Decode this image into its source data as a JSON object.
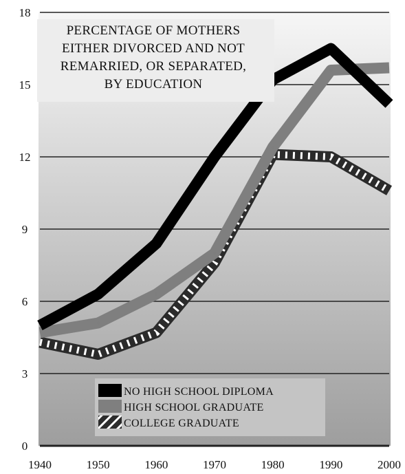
{
  "chart_data": {
    "type": "line",
    "title_lines": [
      "PERCENTAGE OF MOTHERS",
      "EITHER DIVORCED AND NOT",
      "REMARRIED, OR SEPARATED,",
      "BY EDUCATION"
    ],
    "xlabel": "",
    "ylabel": "",
    "x": [
      1940,
      1950,
      1960,
      1970,
      1980,
      1990,
      2000
    ],
    "x_tick_labels": [
      "1940",
      "1950",
      "1960",
      "1970",
      "1980",
      "1990",
      "2000"
    ],
    "ylim": [
      0,
      18
    ],
    "y_ticks": [
      0,
      3,
      6,
      9,
      12,
      15,
      18
    ],
    "y_tick_labels": [
      "0",
      "3",
      "6",
      "9",
      "12",
      "15",
      "18"
    ],
    "grid": "horizontal",
    "legend_position": "bottom-center",
    "colors": {
      "background_top": "#f6f6f6",
      "background_bottom": "#9e9e9e",
      "gridline": "#222222"
    },
    "series": [
      {
        "name": "NO HIGH SCHOOL DIPLOMA",
        "color": "#000000",
        "style": "solid",
        "values": [
          5.0,
          6.3,
          8.4,
          12.0,
          15.2,
          16.5,
          14.2
        ]
      },
      {
        "name": "HIGH SCHOOL GRADUATE",
        "color": "#7f7f7f",
        "style": "solid",
        "values": [
          4.7,
          5.1,
          6.3,
          8.0,
          12.4,
          15.6,
          15.7
        ]
      },
      {
        "name": "COLLEGE GRADUATE",
        "color": "#2b2b2b",
        "style": "hatched",
        "values": [
          4.3,
          3.8,
          4.7,
          7.6,
          12.1,
          12.0,
          10.6
        ]
      }
    ]
  }
}
